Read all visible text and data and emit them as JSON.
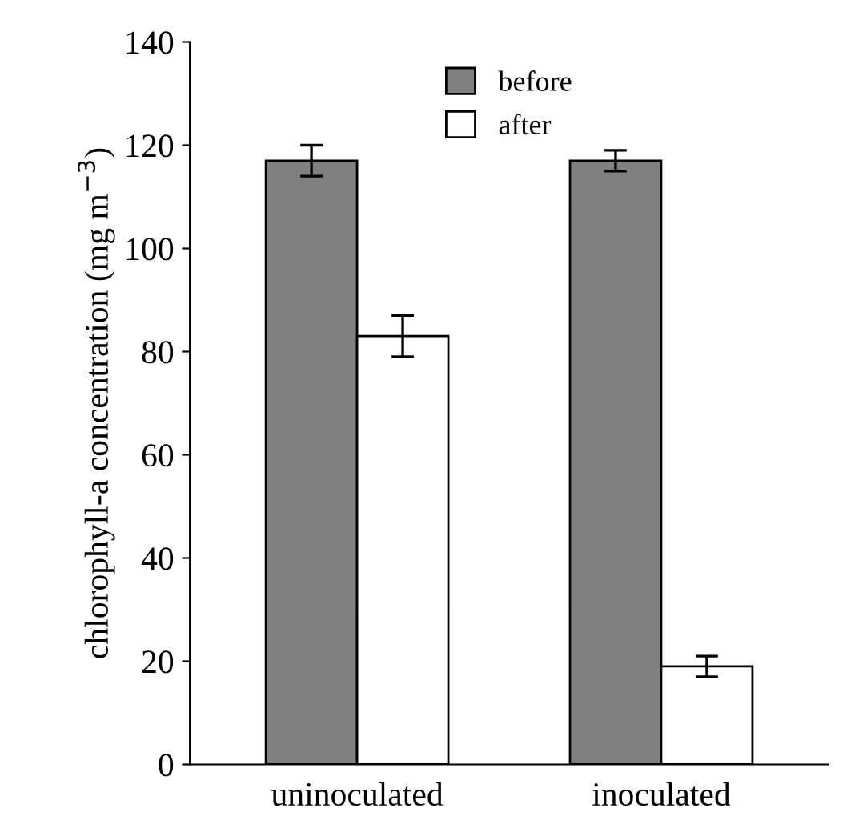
{
  "chart_data": {
    "type": "bar",
    "ylabel": "chlorophyll-a concentration (mg m$^{−3}$)",
    "categories": [
      "uninoculated",
      "inoculated"
    ],
    "series": [
      {
        "name": "before",
        "color": "#808080",
        "values": [
          117,
          117
        ],
        "errors": [
          3,
          2
        ]
      },
      {
        "name": "after",
        "color": "#ffffff",
        "values": [
          83,
          19
        ],
        "errors": [
          4,
          2
        ]
      }
    ],
    "ylim": [
      0,
      140
    ],
    "yticks": [
      0,
      20,
      40,
      60,
      80,
      100,
      120,
      140
    ],
    "grid": false,
    "legend": "top"
  }
}
